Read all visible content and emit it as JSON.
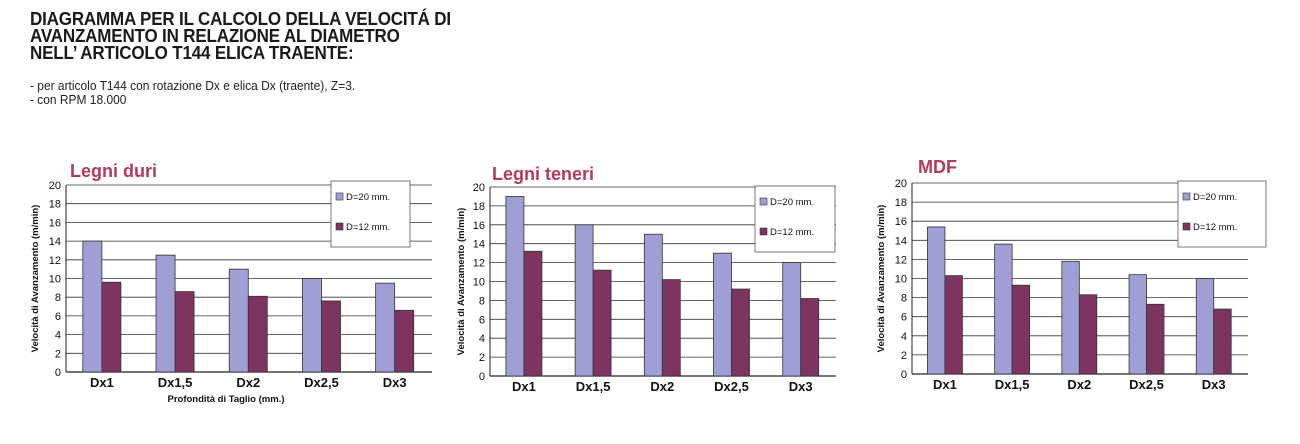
{
  "page": {
    "title_lines": [
      "DIAGRAMMA PER IL CALCOLO DELLA VELOCITÁ DI",
      "AVANZAMENTO IN RELAZIONE AL DIAMETRO",
      "NELL’ ARTICOLO T144 ELICA TRAENTE:"
    ],
    "notes": [
      "- per articolo T144 con rotazione Dx e elica Dx (traente), Z=3.",
      "- con RPM 18.000"
    ]
  },
  "colors": {
    "series1": "#9f9fd6",
    "series2": "#7e3460",
    "subtitle": "#b23a5a"
  },
  "chart_data": [
    {
      "type": "bar",
      "title": "Legni duri",
      "xlabel": "Profondità di Taglio (mm.)",
      "ylabel": "Velocità di Avanzamento (m/min)",
      "ylim": [
        0,
        20
      ],
      "yticks": [
        0,
        2,
        4,
        6,
        8,
        10,
        12,
        14,
        16,
        18,
        20
      ],
      "grid": true,
      "legend_position": "top-right",
      "categories": [
        "Dx1",
        "Dx1,5",
        "Dx2",
        "Dx2,5",
        "Dx3"
      ],
      "series": [
        {
          "name": "D=20 mm.",
          "values": [
            14,
            12.5,
            11,
            10,
            9.5
          ]
        },
        {
          "name": "D=12 mm.",
          "values": [
            9.6,
            8.6,
            8.1,
            7.6,
            6.6
          ]
        }
      ]
    },
    {
      "type": "bar",
      "title": "Legni teneri",
      "xlabel": "",
      "ylabel": "Velocità di Avanzamento (m/min)",
      "ylim": [
        0,
        20
      ],
      "yticks": [
        0,
        2,
        4,
        6,
        8,
        10,
        12,
        14,
        16,
        18,
        20
      ],
      "grid": true,
      "legend_position": "top-right",
      "categories": [
        "Dx1",
        "Dx1,5",
        "Dx2",
        "Dx2,5",
        "Dx3"
      ],
      "series": [
        {
          "name": "D=20 mm.",
          "values": [
            19,
            16,
            15,
            13,
            12
          ]
        },
        {
          "name": "D=12 mm.",
          "values": [
            13.2,
            11.2,
            10.2,
            9.2,
            8.2
          ]
        }
      ]
    },
    {
      "type": "bar",
      "title": "MDF",
      "xlabel": "",
      "ylabel": "Velocità di Avanzamento (m/min)",
      "ylim": [
        0,
        20
      ],
      "yticks": [
        0,
        2,
        4,
        6,
        8,
        10,
        12,
        14,
        16,
        18,
        20
      ],
      "grid": true,
      "legend_position": "top-right",
      "categories": [
        "Dx1",
        "Dx1,5",
        "Dx2",
        "Dx2,5",
        "Dx3"
      ],
      "series": [
        {
          "name": "D=20 mm.",
          "values": [
            15.4,
            13.6,
            11.8,
            10.4,
            10
          ]
        },
        {
          "name": "D=12 mm.",
          "values": [
            10.3,
            9.3,
            8.3,
            7.3,
            6.8
          ]
        }
      ]
    }
  ]
}
